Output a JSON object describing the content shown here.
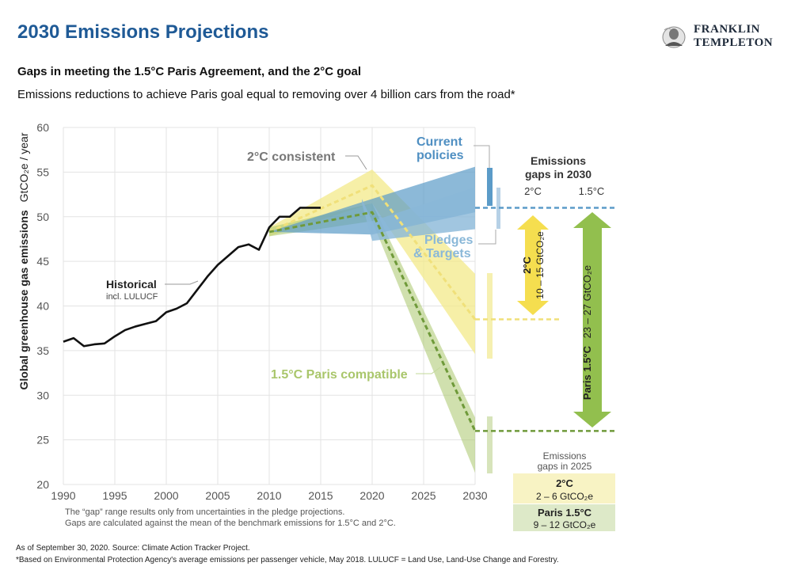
{
  "header": {
    "title": "2030 Emissions Projections",
    "subtitle": "Gaps in meeting the 1.5°C Paris Agreement, and the 2°C goal",
    "subtitle2": "Emissions reductions to achieve Paris goal equal to removing over 4 billion cars from the road*"
  },
  "logo": {
    "line1": "FRANKLIN",
    "line2": "TEMPLETON"
  },
  "footnotes": {
    "source": "As of September 30, 2020. Source: Climate Action Tracker Project.",
    "note": "*Based on Environmental Protection Agency's average emissions per passenger vehicle, May 2018. LULUCF = Land Use, Land-Use Change and Forestry."
  },
  "colors": {
    "historical": "#111111",
    "current_policies": "#5b9bc8",
    "pledges": "#8ab8d8",
    "two_c": "#f3e98a",
    "paris": "#a9c66b",
    "paris_dark": "#6f9a3a",
    "title_blue": "#1f5a96"
  },
  "chart_data": {
    "type": "line",
    "ylabel": "Global greenhouse gas emissions",
    "ylabel_unit": "GtCO₂e / year",
    "xlim": [
      1990,
      2030
    ],
    "ylim": [
      20,
      60
    ],
    "x_ticks": [
      1990,
      1995,
      2000,
      2005,
      2010,
      2015,
      2020,
      2025,
      2030
    ],
    "y_ticks": [
      20,
      25,
      30,
      35,
      40,
      45,
      50,
      55,
      60
    ],
    "grid": true,
    "historical": {
      "label": "Historical",
      "sublabel": "incl. LULUCF",
      "x": [
        1990,
        1991,
        1992,
        1993,
        1994,
        1995,
        1996,
        1997,
        1998,
        1999,
        2000,
        2001,
        2002,
        2003,
        2004,
        2005,
        2006,
        2007,
        2008,
        2009,
        2010,
        2011,
        2012,
        2013,
        2014,
        2015
      ],
      "y": [
        36.0,
        36.4,
        35.5,
        35.7,
        35.8,
        36.6,
        37.3,
        37.7,
        38.0,
        38.3,
        39.3,
        39.7,
        40.3,
        41.8,
        43.3,
        44.6,
        45.6,
        46.6,
        46.9,
        46.3,
        48.8,
        50.0,
        50.0,
        51.0,
        51.0,
        51.0
      ]
    },
    "two_c": {
      "label": "2°C consistent",
      "x": [
        2010,
        2020,
        2030
      ],
      "low": [
        47.8,
        51.5,
        34.6
      ],
      "high": [
        48.8,
        55.3,
        43.6
      ],
      "mean_x": [
        2010,
        2020,
        2030
      ],
      "mean_y": [
        48.3,
        53.5,
        38.5
      ]
    },
    "paris": {
      "label": "1.5°C Paris compatible",
      "x": [
        2010,
        2020,
        2030
      ],
      "low": [
        47.8,
        49.5,
        21.3
      ],
      "high": [
        48.8,
        51.5,
        27.5
      ],
      "mean_x": [
        2010,
        2020,
        2030
      ],
      "mean_y": [
        48.3,
        50.5,
        26.0
      ]
    },
    "current_policies": {
      "label": "Current policies",
      "x": [
        2010,
        2020,
        2030
      ],
      "low": [
        48.3,
        48.0,
        50.5
      ],
      "high": [
        48.3,
        52.0,
        55.6
      ]
    },
    "pledges_targets": {
      "label": "Pledges & Targets",
      "x": [
        2019,
        2020,
        2030
      ],
      "low": [
        51.5,
        47.3,
        48.6
      ],
      "high": [
        52.0,
        49.5,
        53.3
      ]
    },
    "benchmark_lines": {
      "current_2030": 51.0,
      "two_c_2030": 38.5,
      "paris_2030": 26.0
    },
    "gaps_2030": {
      "title": "Emissions gaps in 2030",
      "col_2c": "2°C",
      "col_15c": "1.5°C",
      "two_c_label": "2°C",
      "two_c_range": "10 – 15 GtCO₂e",
      "paris_label": "Paris 1.5°C",
      "paris_range": "23 – 27 GtCO₂e"
    },
    "gaps_2025": {
      "title_line1": "Emissions",
      "title_line2": "gaps in 2025",
      "two_c_label": "2°C",
      "two_c_range": "2 – 6 GtCO₂e",
      "paris_label": "Paris 1.5°C",
      "paris_range": "9 – 12 GtCO₂e"
    },
    "notes": {
      "line1": "The “gap” range results only from uncertainties in the pledge projections.",
      "line2": "Gaps are calculated against the mean of the benchmark emissions for 1.5°C and 2°C."
    }
  }
}
